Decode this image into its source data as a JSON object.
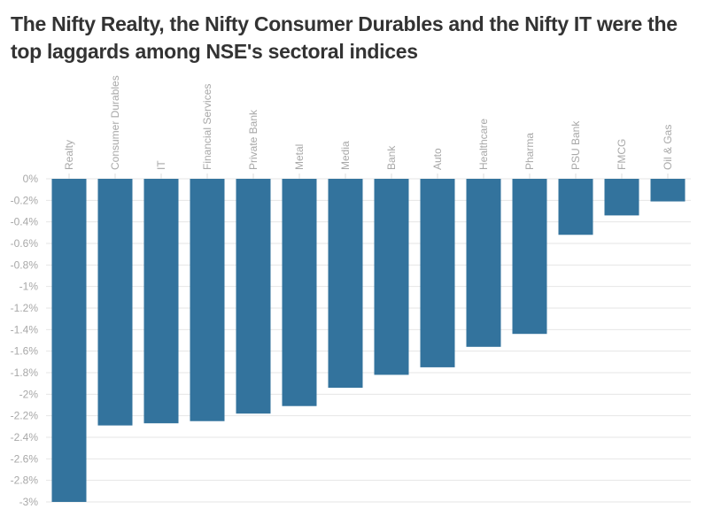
{
  "chart_data": {
    "type": "bar",
    "title": "The Nifty Realty, the Nifty Consumer Durables and the Nifty IT were the top laggards among NSE's sectoral indices",
    "xlabel": "",
    "ylabel": "",
    "categories": [
      "Realty",
      "Consumer Durables",
      "IT",
      "Financial Services",
      "Private Bank",
      "Metal",
      "Media",
      "Bank",
      "Auto",
      "Healthcare",
      "Pharma",
      "PSU Bank",
      "FMCG",
      "Oil & Gas"
    ],
    "values": [
      -3.0,
      -2.29,
      -2.27,
      -2.25,
      -2.18,
      -2.11,
      -1.94,
      -1.82,
      -1.75,
      -1.56,
      -1.44,
      -0.52,
      -0.34,
      -0.21
    ],
    "ylim": [
      -3,
      0
    ],
    "yticks": [
      0,
      -0.2,
      -0.4,
      -0.6,
      -0.8,
      -1,
      -1.2,
      -1.4,
      -1.6,
      -1.8,
      -2,
      -2.2,
      -2.4,
      -2.6,
      -2.8,
      -3
    ],
    "ytick_labels": [
      "0%",
      "-0.2%",
      "-0.4%",
      "-0.6%",
      "-0.8%",
      "-1%",
      "-1.2%",
      "-1.4%",
      "-1.6%",
      "-1.8%",
      "-2%",
      "-2.2%",
      "-2.4%",
      "-2.6%",
      "-2.8%",
      "-3%"
    ],
    "x_axis_position": "top",
    "grid": true,
    "legend": "none",
    "bar_color": "#33739d"
  }
}
